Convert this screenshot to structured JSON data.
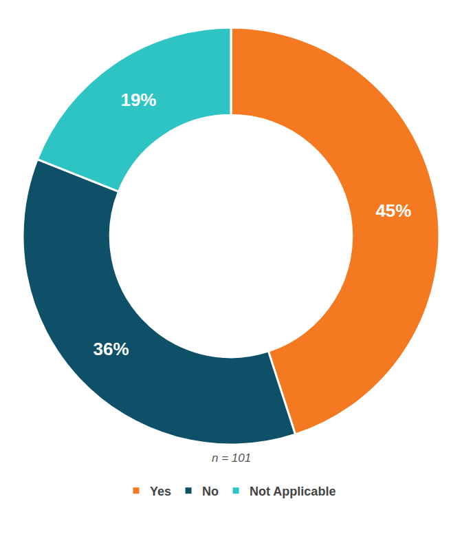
{
  "chart_data": {
    "type": "donut",
    "categories": [
      "Yes",
      "No",
      "Not Applicable"
    ],
    "values": [
      45,
      36,
      19
    ],
    "value_labels": [
      "45%",
      "36%",
      "19%"
    ],
    "colors": [
      "#F47920",
      "#0D5068",
      "#2EC4C4"
    ],
    "data_labels": true,
    "legend": "bottom",
    "annotations": [
      "n = 101"
    ]
  }
}
